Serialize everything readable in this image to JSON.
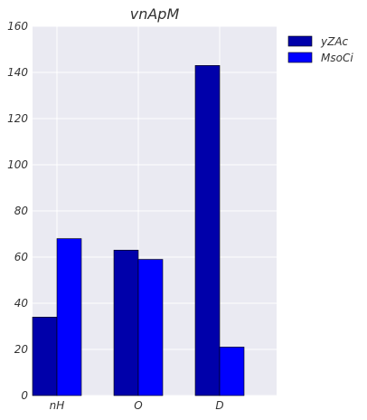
{
  "chart_data": {
    "type": "bar",
    "title": "vnApM",
    "xlabel": "",
    "ylabel": "",
    "categories": [
      "nH",
      "O",
      "D"
    ],
    "series": [
      {
        "name": "yZAc",
        "values": [
          34,
          63,
          143
        ],
        "color": "#0000aa"
      },
      {
        "name": "MsoCi",
        "values": [
          68,
          59,
          21
        ],
        "color": "#0000ff"
      }
    ],
    "ylim": [
      0,
      160
    ],
    "yticks": [
      0,
      20,
      40,
      60,
      80,
      100,
      120,
      140,
      160
    ],
    "grid": true,
    "legend_position": "top-right-outside",
    "background_color": "#eaeaf2"
  }
}
